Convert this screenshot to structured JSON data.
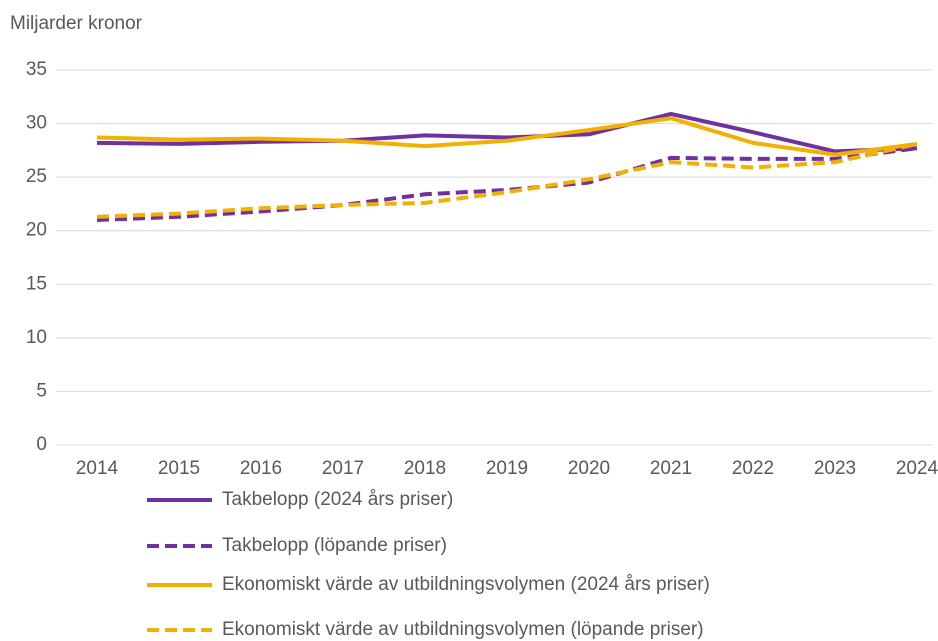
{
  "chart_data": {
    "type": "line",
    "y_axis_label": "Miljarder kronor",
    "categories": [
      "2014",
      "2015",
      "2016",
      "2017",
      "2018",
      "2019",
      "2020",
      "2021",
      "2022",
      "2023",
      "2024"
    ],
    "series": [
      {
        "name": "Takbelopp (2024 års priser)",
        "color": "#7030a0",
        "dashed": false,
        "values": [
          28.2,
          28.1,
          28.3,
          28.4,
          28.9,
          28.7,
          29.0,
          30.9,
          29.2,
          27.4,
          27.7
        ]
      },
      {
        "name": "Takbelopp (löpande priser)",
        "color": "#7030a0",
        "dashed": true,
        "values": [
          21.0,
          21.3,
          21.8,
          22.4,
          23.4,
          23.8,
          24.5,
          26.8,
          26.7,
          26.7,
          27.7
        ]
      },
      {
        "name": "Ekonomiskt värde av utbildningsvolymen (2024 års priser)",
        "color": "#f2b000",
        "dashed": false,
        "values": [
          28.7,
          28.5,
          28.6,
          28.4,
          27.9,
          28.4,
          29.4,
          30.5,
          28.2,
          27.1,
          28.1
        ]
      },
      {
        "name": "Ekonomiskt värde av utbildningsvolymen (löpande priser)",
        "color": "#f2b000",
        "dashed": true,
        "values": [
          21.3,
          21.6,
          22.1,
          22.4,
          22.6,
          23.6,
          24.8,
          26.4,
          25.9,
          26.4,
          28.1
        ]
      }
    ],
    "ylim": [
      0,
      35
    ],
    "yticks": [
      0,
      5,
      10,
      15,
      20,
      25,
      30,
      35
    ],
    "grid": true
  }
}
